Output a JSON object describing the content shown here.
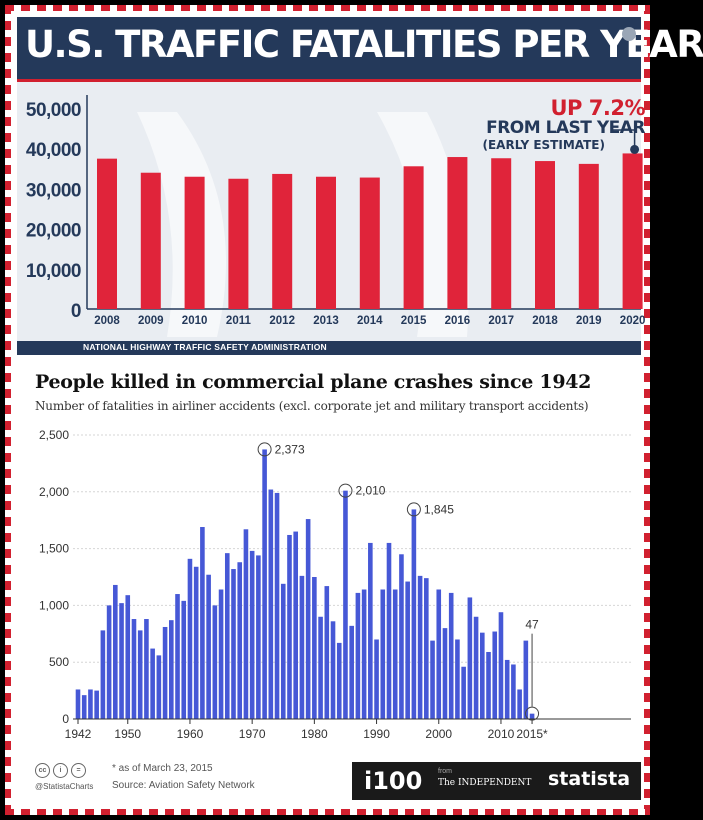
{
  "top_chart": {
    "title": "U.S. TRAFFIC FATALITIES PER YEAR",
    "callout_headline": "UP 7.2%",
    "callout_line2": "FROM LAST YEAR",
    "callout_line3": "(EARLY ESTIMATE)",
    "source": "NATIONAL HIGHWAY TRAFFIC SAFETY ADMINISTRATION"
  },
  "bottom_chart": {
    "title": "People killed in commercial plane crashes since 1942",
    "subtitle": "Number of fatalities in airliner accidents (excl. corporate jet and military transport accidents)"
  },
  "footer": {
    "cc_icons": [
      "creative-commons-icon",
      "attribution-icon",
      "no-derivatives-icon"
    ],
    "cc_glyphs": [
      "cc",
      "i",
      "="
    ],
    "handle": "@StatistaCharts",
    "as_of": "* as of March 23, 2015",
    "source": "Source: Aviation Safety Network",
    "brand_i100": "i100",
    "brand_from": "from",
    "brand_independent": "The INDEPENDENT",
    "brand_statista": "statista"
  },
  "colors": {
    "navy": "#24395a",
    "red": "#d1202f",
    "blue_bar": "#4658d6"
  },
  "chart_data": [
    {
      "type": "bar",
      "title": "U.S. TRAFFIC FATALITIES PER YEAR",
      "categories": [
        "2008",
        "2009",
        "2010",
        "2011",
        "2012",
        "2013",
        "2014",
        "2015",
        "2016",
        "2017",
        "2018",
        "2019",
        "2020"
      ],
      "values": [
        37400,
        33900,
        32900,
        32400,
        33600,
        32900,
        32700,
        35500,
        37800,
        37500,
        36800,
        36100,
        38700
      ],
      "ylim": [
        0,
        50000
      ],
      "y_ticks": [
        0,
        10000,
        20000,
        30000,
        40000,
        50000
      ],
      "y_tick_labels": [
        "0",
        "10,000",
        "20,000",
        "30,000",
        "40,000",
        "50,000"
      ],
      "grid": false,
      "color": "#e0243a",
      "annotation": {
        "category": "2020",
        "text": "UP 7.2% FROM LAST YEAR (EARLY ESTIMATE)"
      }
    },
    {
      "type": "bar",
      "title": "People killed in commercial plane crashes since 1942",
      "subtitle": "Number of fatalities in airliner accidents (excl. corporate jet and military transport accidents)",
      "x_start": 1942,
      "x_end": 2015,
      "values": [
        260,
        210,
        260,
        250,
        780,
        1000,
        1180,
        1020,
        1090,
        880,
        780,
        880,
        620,
        560,
        810,
        870,
        1100,
        1040,
        1410,
        1340,
        1690,
        1270,
        1000,
        1140,
        1460,
        1320,
        1380,
        1670,
        1480,
        1440,
        2373,
        2020,
        1990,
        1190,
        1620,
        1650,
        1260,
        1760,
        1250,
        900,
        1170,
        860,
        670,
        2010,
        820,
        1110,
        1140,
        1550,
        700,
        1140,
        1550,
        1140,
        1450,
        1210,
        1845,
        1260,
        1240,
        690,
        1140,
        800,
        1110,
        700,
        460,
        1070,
        900,
        760,
        590,
        770,
        940,
        520,
        480,
        260,
        690,
        47
      ],
      "ylim": [
        0,
        2500
      ],
      "y_ticks": [
        0,
        500,
        1000,
        1500,
        2000,
        2500
      ],
      "y_tick_labels": [
        "0",
        "500",
        "1,000",
        "1,500",
        "2,000",
        "2,500"
      ],
      "x_ticks": [
        1942,
        1950,
        1960,
        1970,
        1980,
        1990,
        2000,
        2010,
        2015
      ],
      "x_tick_labels": [
        "1942",
        "1950",
        "1960",
        "1970",
        "1980",
        "1990",
        "2000",
        "2010",
        "2015*"
      ],
      "grid": true,
      "color": "#4658d6",
      "annotations": [
        {
          "year": 1972,
          "text": "2,373"
        },
        {
          "year": 1985,
          "text": "2,010"
        },
        {
          "year": 1996,
          "text": "1,845"
        },
        {
          "year": 2015,
          "text": "47"
        }
      ]
    }
  ]
}
